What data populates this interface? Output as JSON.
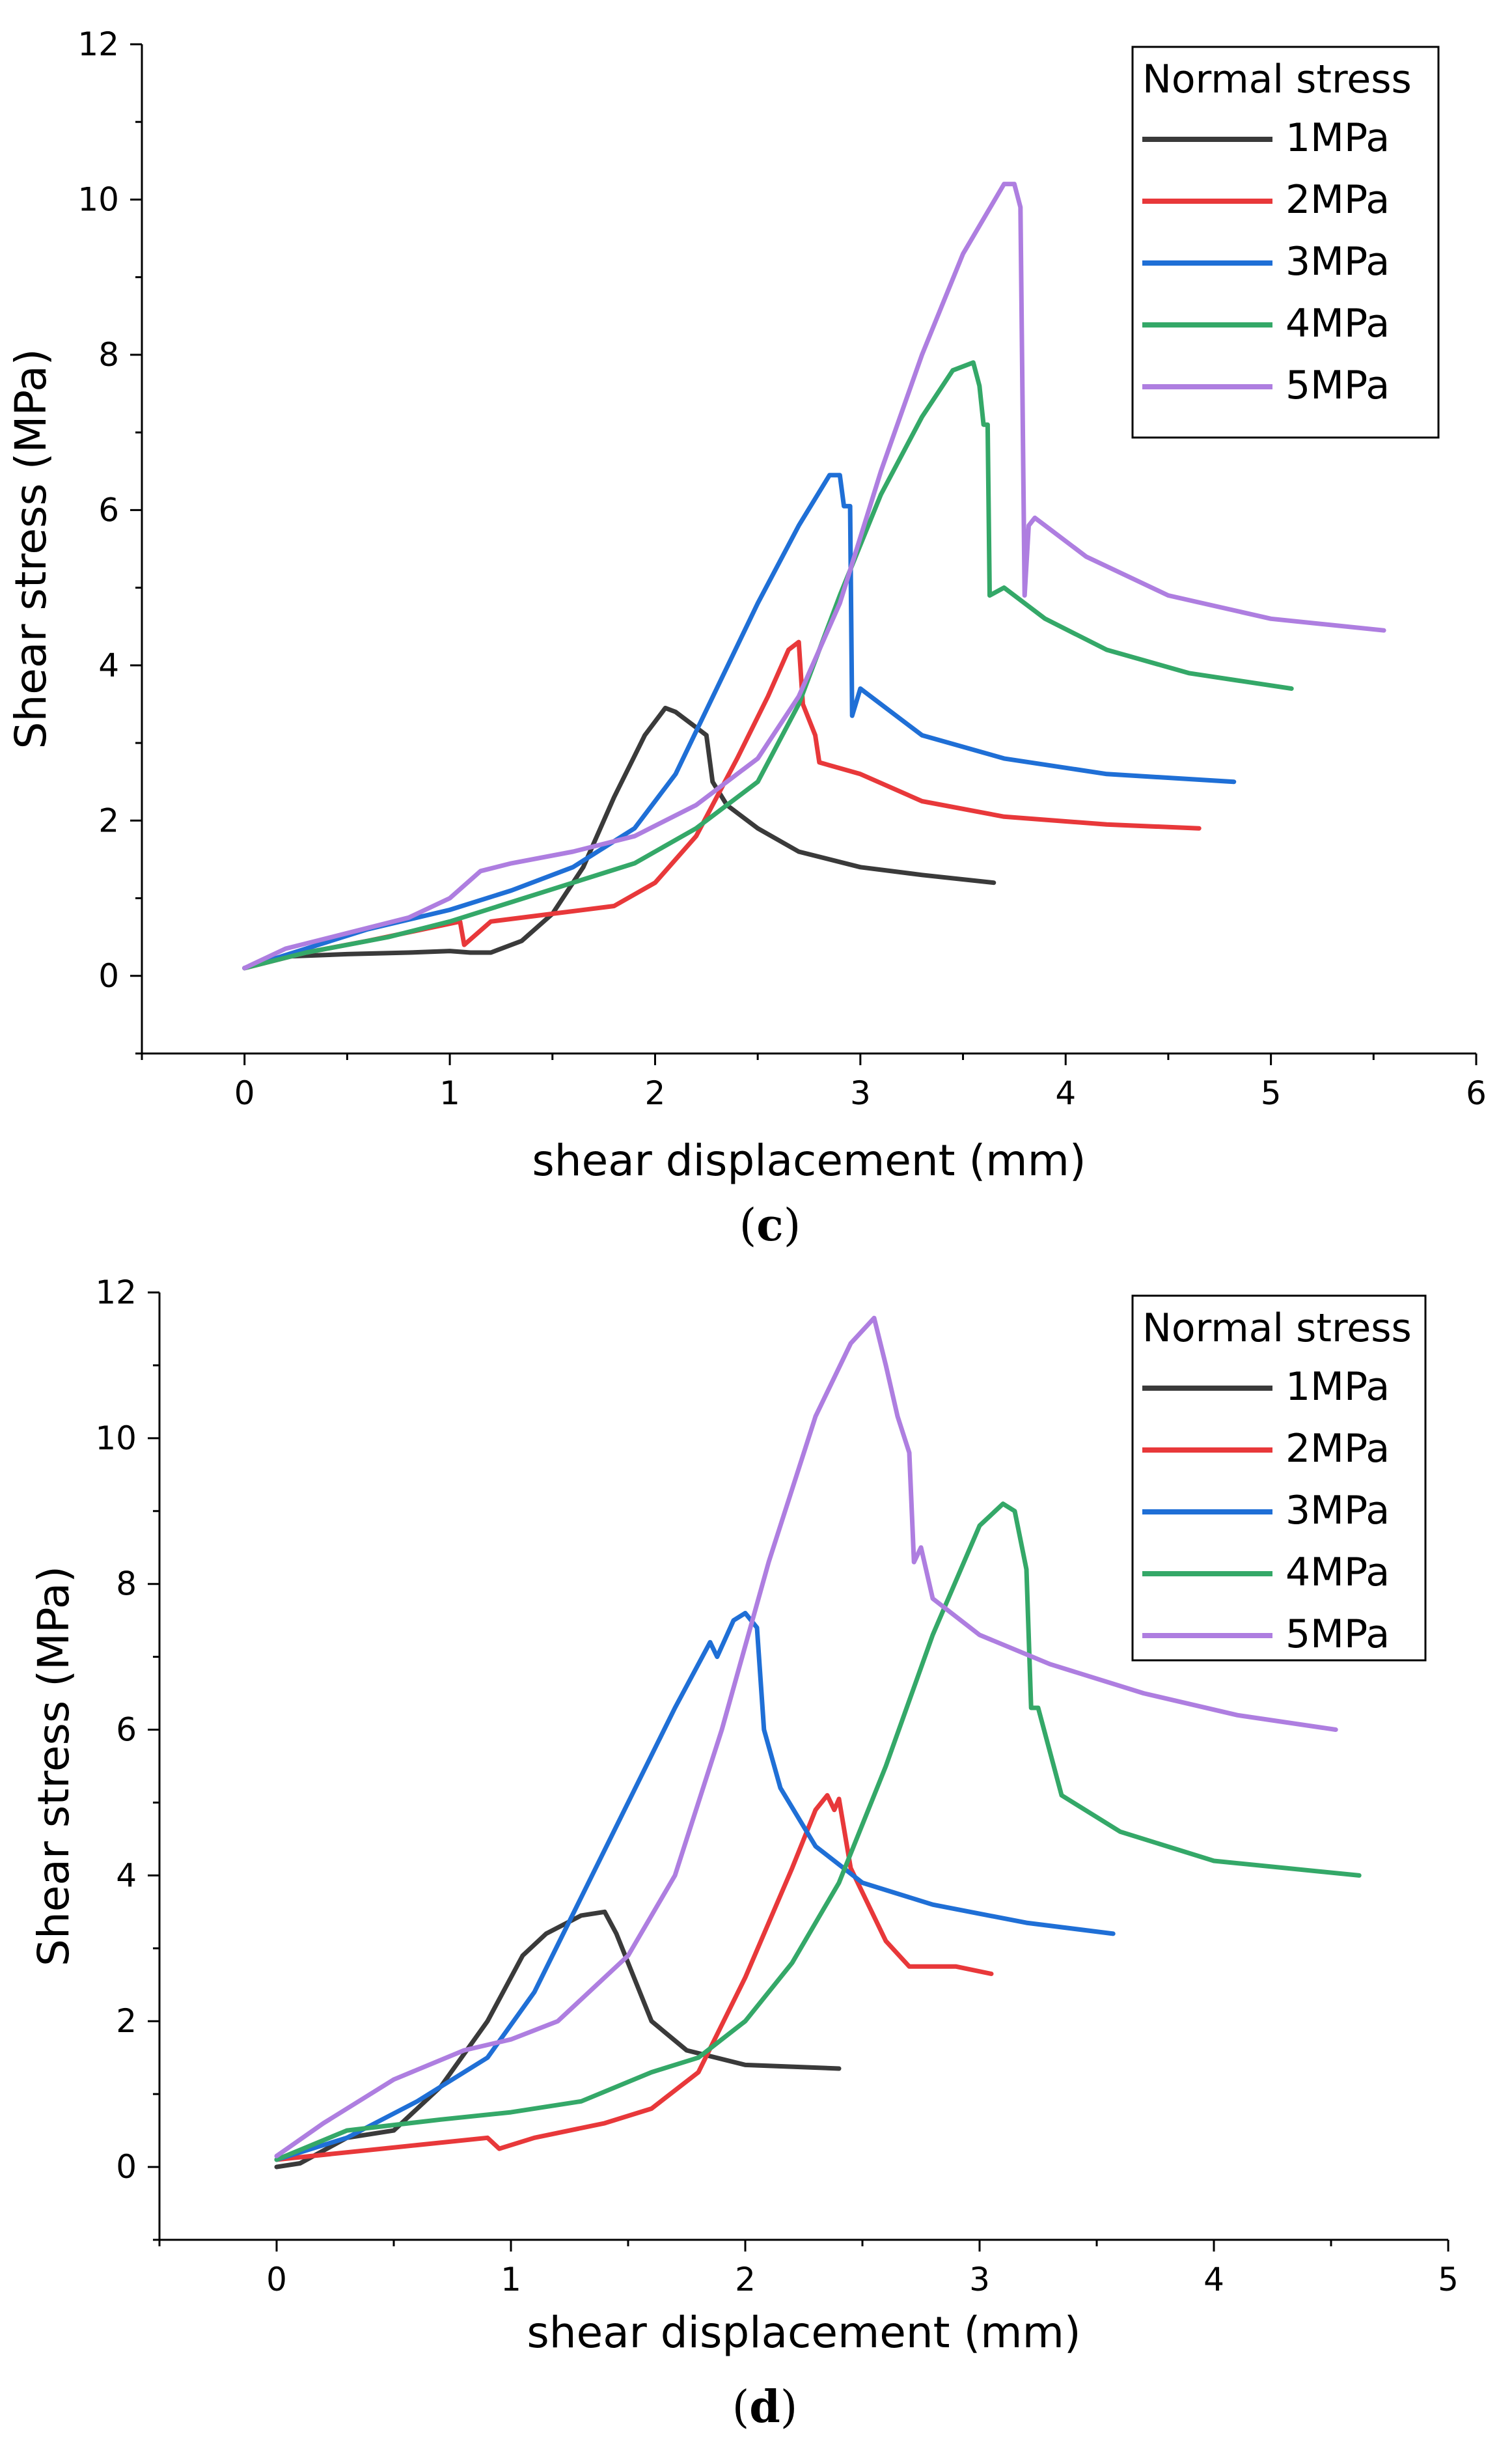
{
  "colors": {
    "1MPa": "#3a3a3a",
    "2MPa": "#e8383a",
    "3MPa": "#1f6fd6",
    "4MPa": "#34a868",
    "5MPa": "#ae7ee0"
  },
  "chart_data": [
    {
      "type": "line",
      "caption": "c",
      "xlabel": "shear displacement (mm)",
      "ylabel": "Shear stress (MPa)",
      "xlim": [
        -0.5,
        6
      ],
      "ylim": [
        -1,
        12
      ],
      "xticks": [
        "0",
        "1",
        "2",
        "3",
        "4",
        "5",
        "6"
      ],
      "yticks": [
        "0",
        "2",
        "4",
        "6",
        "8",
        "10",
        "12"
      ],
      "xtick_values": [
        0,
        1,
        2,
        3,
        4,
        5,
        6
      ],
      "ytick_values": [
        0,
        2,
        4,
        6,
        8,
        10,
        12
      ],
      "legend": {
        "title": "Normal stress",
        "position": "top-right"
      },
      "series": [
        {
          "name": "1MPa",
          "x": [
            0,
            0.2,
            0.5,
            0.8,
            1.0,
            1.1,
            1.2,
            1.35,
            1.5,
            1.65,
            1.8,
            1.95,
            2.05,
            2.1,
            2.2,
            2.25,
            2.28,
            2.35,
            2.5,
            2.7,
            3.0,
            3.3,
            3.65
          ],
          "y": [
            0.1,
            0.25,
            0.28,
            0.3,
            0.32,
            0.3,
            0.3,
            0.45,
            0.8,
            1.4,
            2.3,
            3.1,
            3.45,
            3.4,
            3.2,
            3.1,
            2.5,
            2.2,
            1.9,
            1.6,
            1.4,
            1.3,
            1.2
          ]
        },
        {
          "name": "2MPa",
          "x": [
            0,
            0.3,
            0.6,
            1.05,
            1.07,
            1.2,
            1.5,
            1.8,
            2.0,
            2.2,
            2.4,
            2.55,
            2.65,
            2.7,
            2.72,
            2.75,
            2.78,
            2.8,
            3.0,
            3.3,
            3.7,
            4.2,
            4.65
          ],
          "y": [
            0.1,
            0.3,
            0.45,
            0.7,
            0.4,
            0.7,
            0.8,
            0.9,
            1.2,
            1.8,
            2.8,
            3.6,
            4.2,
            4.3,
            3.5,
            3.3,
            3.1,
            2.75,
            2.6,
            2.25,
            2.05,
            1.95,
            1.9
          ]
        },
        {
          "name": "3MPa",
          "x": [
            0,
            0.3,
            0.6,
            1.0,
            1.3,
            1.6,
            1.9,
            2.1,
            2.3,
            2.5,
            2.7,
            2.85,
            2.9,
            2.92,
            2.95,
            2.96,
            3.0,
            3.3,
            3.7,
            4.2,
            4.82
          ],
          "y": [
            0.1,
            0.35,
            0.6,
            0.85,
            1.1,
            1.4,
            1.9,
            2.6,
            3.7,
            4.8,
            5.8,
            6.45,
            6.45,
            6.05,
            6.05,
            3.35,
            3.7,
            3.1,
            2.8,
            2.6,
            2.5
          ]
        },
        {
          "name": "4MPa",
          "x": [
            0,
            0.3,
            0.7,
            1.0,
            1.3,
            1.6,
            1.9,
            2.2,
            2.5,
            2.7,
            2.9,
            3.1,
            3.3,
            3.45,
            3.55,
            3.58,
            3.6,
            3.62,
            3.63,
            3.7,
            3.9,
            4.2,
            4.6,
            5.1
          ],
          "y": [
            0.1,
            0.3,
            0.5,
            0.7,
            0.95,
            1.2,
            1.45,
            1.9,
            2.5,
            3.5,
            4.9,
            6.2,
            7.2,
            7.8,
            7.9,
            7.6,
            7.1,
            7.1,
            4.9,
            5.0,
            4.6,
            4.2,
            3.9,
            3.7
          ]
        },
        {
          "name": "5MPa",
          "x": [
            0,
            0.2,
            0.5,
            0.8,
            1.0,
            1.15,
            1.3,
            1.6,
            1.9,
            2.2,
            2.5,
            2.7,
            2.9,
            3.1,
            3.3,
            3.5,
            3.7,
            3.75,
            3.78,
            3.8,
            3.82,
            3.85,
            3.9,
            4.1,
            4.5,
            5.0,
            5.55
          ],
          "y": [
            0.1,
            0.35,
            0.55,
            0.75,
            1.0,
            1.35,
            1.45,
            1.6,
            1.8,
            2.2,
            2.8,
            3.6,
            4.8,
            6.5,
            8.0,
            9.3,
            10.2,
            10.2,
            9.9,
            4.9,
            5.8,
            5.9,
            5.8,
            5.4,
            4.9,
            4.6,
            4.45
          ]
        }
      ]
    },
    {
      "type": "line",
      "caption": "d",
      "xlabel": "shear displacement (mm)",
      "ylabel": "Shear stress (MPa)",
      "xlim": [
        -0.5,
        5
      ],
      "ylim": [
        -1,
        12
      ],
      "xticks": [
        "0",
        "1",
        "2",
        "3",
        "4",
        "5"
      ],
      "yticks": [
        "0",
        "2",
        "4",
        "6",
        "8",
        "10",
        "12"
      ],
      "xtick_values": [
        0,
        1,
        2,
        3,
        4,
        5
      ],
      "ytick_values": [
        0,
        2,
        4,
        6,
        8,
        10,
        12
      ],
      "legend": {
        "title": "Normal stress",
        "position": "top-right"
      },
      "series": [
        {
          "name": "1MPa",
          "x": [
            0,
            0.1,
            0.3,
            0.5,
            0.7,
            0.9,
            1.05,
            1.15,
            1.3,
            1.4,
            1.45,
            1.5,
            1.6,
            1.75,
            2.0,
            2.4
          ],
          "y": [
            0.0,
            0.05,
            0.4,
            0.5,
            1.1,
            2.0,
            2.9,
            3.2,
            3.45,
            3.5,
            3.2,
            2.8,
            2.0,
            1.6,
            1.4,
            1.35
          ]
        },
        {
          "name": "2MPa",
          "x": [
            0,
            0.3,
            0.6,
            0.9,
            0.95,
            1.1,
            1.4,
            1.6,
            1.8,
            2.0,
            2.2,
            2.3,
            2.35,
            2.38,
            2.4,
            2.45,
            2.6,
            2.7,
            2.9,
            3.05
          ],
          "y": [
            0.1,
            0.2,
            0.3,
            0.4,
            0.25,
            0.4,
            0.6,
            0.8,
            1.3,
            2.6,
            4.1,
            4.9,
            5.1,
            4.9,
            5.05,
            4.1,
            3.1,
            2.75,
            2.75,
            2.65
          ]
        },
        {
          "name": "3MPa",
          "x": [
            0,
            0.3,
            0.6,
            0.9,
            1.1,
            1.3,
            1.5,
            1.7,
            1.85,
            1.88,
            1.95,
            2.0,
            2.05,
            2.08,
            2.15,
            2.3,
            2.5,
            2.8,
            3.2,
            3.57
          ],
          "y": [
            0.1,
            0.4,
            0.9,
            1.5,
            2.4,
            3.7,
            5.0,
            6.3,
            7.2,
            7.0,
            7.5,
            7.6,
            7.4,
            6.0,
            5.2,
            4.4,
            3.9,
            3.6,
            3.35,
            3.2
          ]
        },
        {
          "name": "4MPa",
          "x": [
            0,
            0.3,
            0.7,
            1.0,
            1.3,
            1.6,
            1.8,
            2.0,
            2.2,
            2.4,
            2.6,
            2.8,
            3.0,
            3.1,
            3.15,
            3.2,
            3.22,
            3.25,
            3.35,
            3.6,
            4.0,
            4.62
          ],
          "y": [
            0.1,
            0.5,
            0.65,
            0.75,
            0.9,
            1.3,
            1.5,
            2.0,
            2.8,
            3.9,
            5.5,
            7.3,
            8.8,
            9.1,
            9.0,
            8.2,
            6.3,
            6.3,
            5.1,
            4.6,
            4.2,
            4.0
          ]
        },
        {
          "name": "5MPa",
          "x": [
            0,
            0.2,
            0.5,
            0.8,
            1.0,
            1.2,
            1.5,
            1.7,
            1.9,
            2.1,
            2.3,
            2.45,
            2.55,
            2.6,
            2.65,
            2.7,
            2.72,
            2.75,
            2.8,
            3.0,
            3.3,
            3.7,
            4.1,
            4.52
          ],
          "y": [
            0.15,
            0.6,
            1.2,
            1.6,
            1.75,
            2.0,
            2.9,
            4.0,
            6.0,
            8.3,
            10.3,
            11.3,
            11.65,
            11.0,
            10.3,
            9.8,
            8.3,
            8.5,
            7.8,
            7.3,
            6.9,
            6.5,
            6.2,
            6.0
          ]
        }
      ]
    }
  ]
}
